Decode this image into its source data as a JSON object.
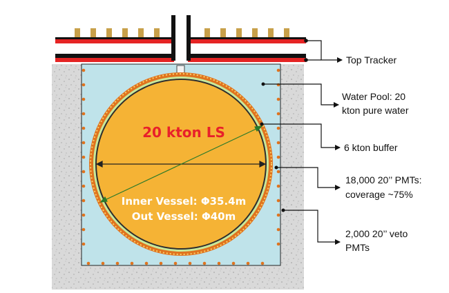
{
  "diagram": {
    "labels": {
      "top_tracker": "Top Tracker",
      "water_pool_line1": "Water Pool: 20",
      "water_pool_line2": "kton pure water",
      "buffer": "6 kton buffer",
      "pmts_line1": "18,000 20’’ PMTs:",
      "pmts_line2": "coverage ~75%",
      "veto_line1": "2,000 20’’ veto",
      "veto_line2": "PMTs"
    },
    "center_label": "20 kton LS",
    "inner_vessel": "Inner Vessel: Φ35.4m",
    "outer_vessel": "Out Vessel: Φ40m",
    "colors": {
      "concrete": "#d9d9d9",
      "water": "#bfe3ea",
      "liquid_scintillator": "#f5b335",
      "pmt_ring": "#e0731e",
      "buffer_ring": "#c9e89a",
      "tracker_red": "#e52424",
      "tracker_black": "#111111",
      "tracker_module": "#c8a04a",
      "ls_text": "#e8202a"
    }
  }
}
